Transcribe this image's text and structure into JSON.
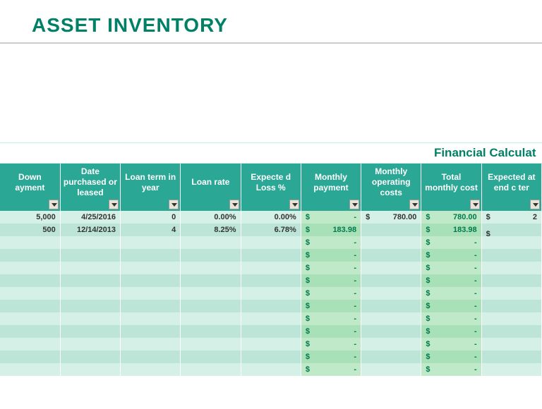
{
  "title": "ASSET INVENTORY",
  "sectionLabel": "Financial Calculat",
  "headers": {
    "down": "Down ayment",
    "date": "Date purchased or leased",
    "term": "Loan term in year",
    "rate": "Loan rate",
    "loss": "Expecte d Loss %",
    "monthly": "Monthly payment",
    "opcost": "Monthly operating costs",
    "total": "Total monthly cost",
    "expval": "Expected at end c ter"
  },
  "rows": [
    {
      "down": "5,000",
      "date": "4/25/2016",
      "term": "0",
      "rate": "0.00%",
      "loss": "0.00%",
      "monthly": "-",
      "opcost": "780.00",
      "total": "780.00",
      "expval": "2"
    },
    {
      "down": "500",
      "date": "12/14/2013",
      "term": "4",
      "rate": "8.25%",
      "loss": "6.78%",
      "monthly": "183.98",
      "opcost": "",
      "total": "183.98",
      "expval": ""
    },
    {
      "monthly": "-",
      "total": "-"
    },
    {
      "monthly": "-",
      "total": "-"
    },
    {
      "monthly": "-",
      "total": "-"
    },
    {
      "monthly": "-",
      "total": "-"
    },
    {
      "monthly": "-",
      "total": "-"
    },
    {
      "monthly": "-",
      "total": "-"
    },
    {
      "monthly": "-",
      "total": "-"
    },
    {
      "monthly": "-",
      "total": "-"
    },
    {
      "monthly": "-",
      "total": "-"
    },
    {
      "monthly": "-",
      "total": "-"
    },
    {
      "monthly": "-",
      "total": "-"
    }
  ],
  "colors": {
    "titleColor": "#008066",
    "headerBg": "#2aa795",
    "stripeA_input": "#d5f1e7",
    "stripeB_input": "#bce4d7",
    "stripeA_calc": "#bfe9c9",
    "stripeB_calc": "#a8e0b8",
    "calcText": "#007a4d"
  }
}
